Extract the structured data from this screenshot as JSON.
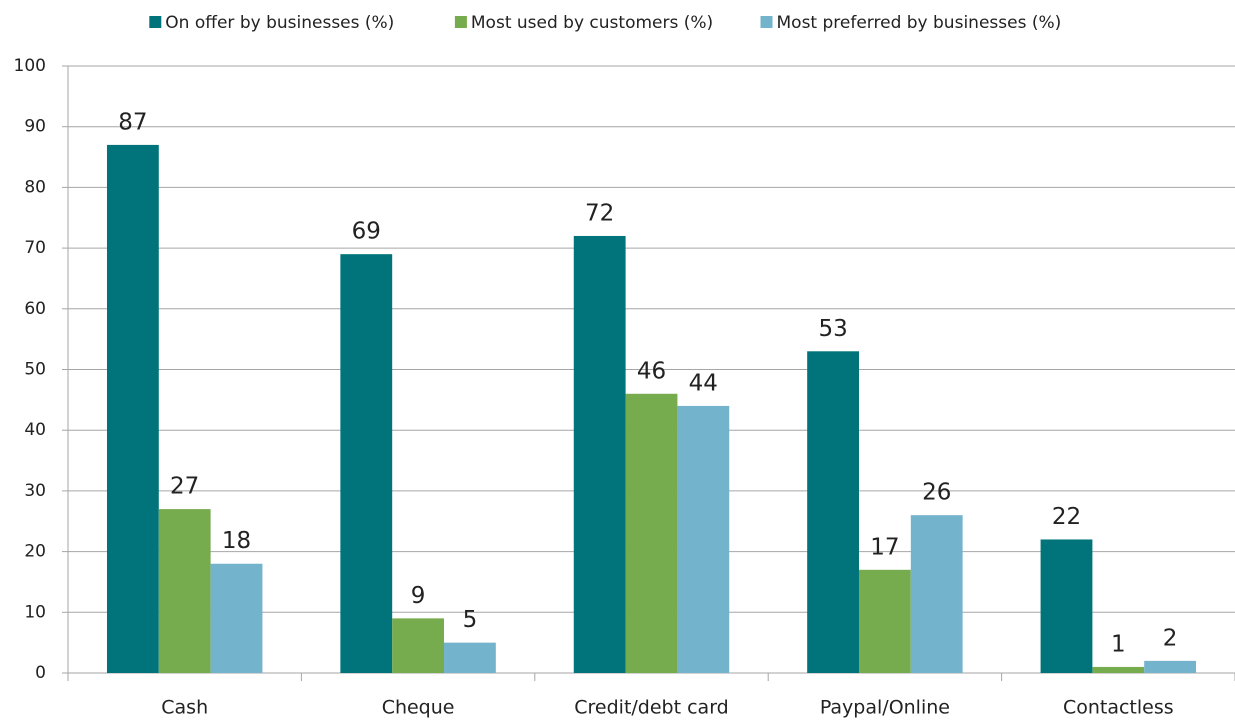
{
  "chart_data": {
    "type": "bar",
    "categories": [
      "Cash",
      "Cheque",
      "Credit/debt card",
      "Paypal/Online",
      "Contactless"
    ],
    "series": [
      {
        "name": "On offer by businesses (%)",
        "color": "#00747a",
        "values": [
          87,
          69,
          72,
          53,
          22
        ]
      },
      {
        "name": "Most used by customers (%)",
        "color": "#76ab4e",
        "values": [
          27,
          9,
          46,
          17,
          1
        ]
      },
      {
        "name": "Most preferred by businesses (%)",
        "color": "#74b3cc",
        "values": [
          18,
          5,
          44,
          26,
          2
        ]
      }
    ],
    "ylim": [
      0,
      100
    ],
    "yticks": [
      0,
      10,
      20,
      30,
      40,
      50,
      60,
      70,
      80,
      90,
      100
    ],
    "grid": true,
    "legend": "top"
  }
}
